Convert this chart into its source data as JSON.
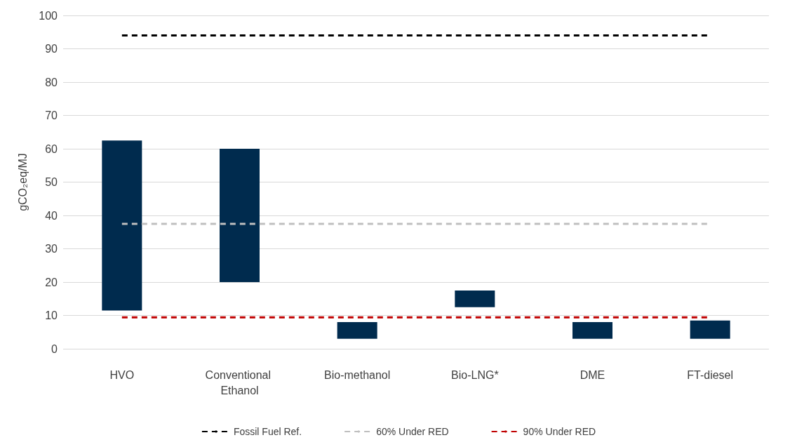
{
  "chart_data": {
    "type": "bar",
    "ylabel": "gCO₂eq/MJ",
    "categories": [
      "HVO",
      "Conventional Ethanol",
      "Bio-methanol",
      "Bio-LNG*",
      "DME",
      "FT-diesel"
    ],
    "values": [
      51,
      40,
      5,
      5,
      5,
      5.5
    ],
    "base": [
      11.5,
      20,
      3,
      12.5,
      3,
      3
    ],
    "color": "#002b4e",
    "ylim": [
      0,
      100
    ],
    "yticks": [
      0,
      10,
      20,
      30,
      40,
      50,
      60,
      70,
      80,
      90,
      100
    ],
    "grid": "y",
    "legend": "bottom",
    "ref_lines": [
      {
        "axis": "y",
        "value": 94,
        "label": "Fossil Fuel Ref.",
        "color": "#000000",
        "line_style": "dashed"
      },
      {
        "axis": "y",
        "value": 37.5,
        "label": "60% Under RED",
        "color": "#bfbfbf",
        "line_style": "dashed"
      },
      {
        "axis": "y",
        "value": 9.4,
        "label": "90% Under RED",
        "color": "#c00000",
        "line_style": "dashed"
      }
    ]
  }
}
